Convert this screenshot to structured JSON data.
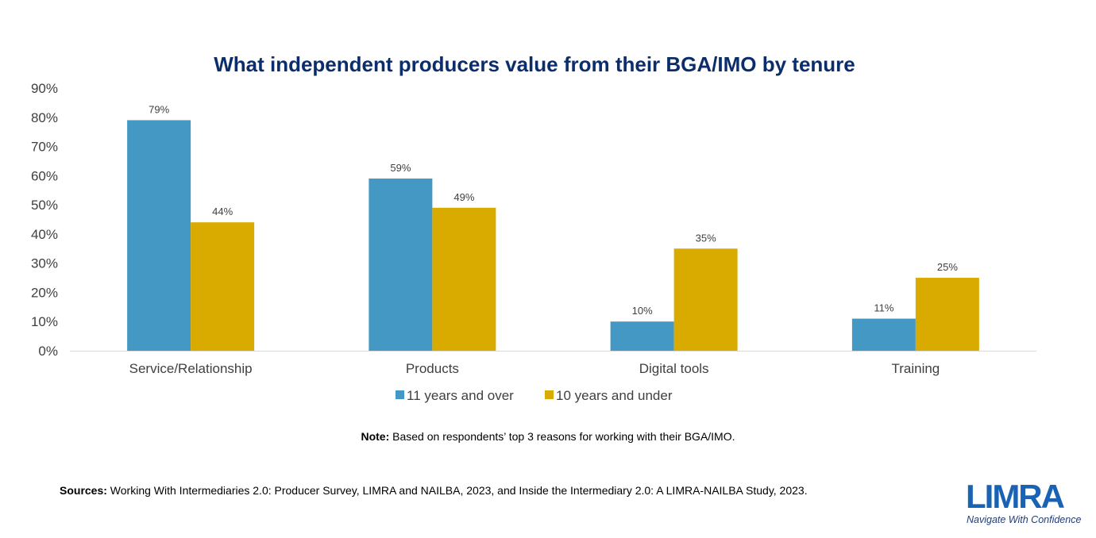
{
  "chart_data": {
    "type": "bar",
    "title": "What independent producers value from their BGA/IMO by tenure",
    "categories": [
      "Service/Relationship",
      "Products",
      "Digital tools",
      "Training"
    ],
    "series": [
      {
        "name": "11 years and over",
        "color": "#4399c4",
        "values": [
          79,
          59,
          10,
          11
        ],
        "labels": [
          "79%",
          "59%",
          "10%",
          "11%"
        ]
      },
      {
        "name": "10 years and under",
        "color": "#d9aa00",
        "values": [
          44,
          49,
          35,
          25
        ],
        "labels": [
          "44%",
          "49%",
          "35%",
          "25%"
        ]
      }
    ],
    "ylim": [
      0,
      90
    ],
    "y_ticks": [
      "0%",
      "10%",
      "20%",
      "30%",
      "40%",
      "50%",
      "60%",
      "70%",
      "80%",
      "90%"
    ],
    "grid": false,
    "legend": "bottom-center",
    "title_color": "#0b2d6b"
  },
  "note": {
    "label": "Note:",
    "text": " Based on respondents’ top 3 reasons for working with their BGA/IMO."
  },
  "sources": {
    "label": "Sources:",
    "text": " Working With Intermediaries 2.0: Producer Survey, LIMRA and NAILBA, 2023, and Inside the Intermediary 2.0: A LIMRA-NAILBA Study, 2023."
  },
  "logo": {
    "name": "LIMRA",
    "tagline": "Navigate With Confidence"
  }
}
